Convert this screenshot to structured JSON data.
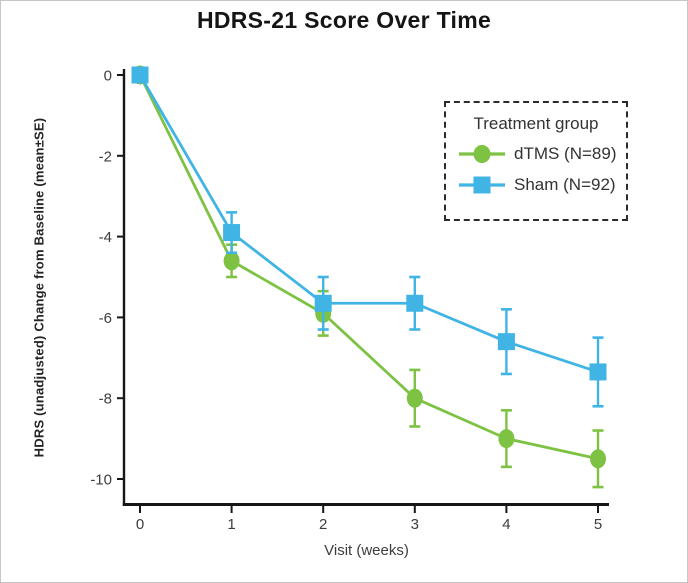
{
  "chart_data": {
    "type": "line",
    "title": "HDRS-21 Score Over Time",
    "xlabel": "Visit (weeks)",
    "ylabel": "HDRS (unadjusted) Change from Baseline (mean±SE)",
    "x": [
      0,
      1,
      2,
      3,
      4,
      5
    ],
    "xticks": [
      0,
      1,
      2,
      3,
      4,
      5
    ],
    "yticks": [
      0,
      -2,
      -4,
      -6,
      -8,
      -10
    ],
    "xlim": [
      -0.18,
      5.12
    ],
    "ylim": [
      -10.7,
      0.2
    ],
    "grid": false,
    "axis_color": "#161616",
    "error_bars": "mean±SE",
    "legend": {
      "title": "Treatment group",
      "position": "upper right",
      "border": "dashed"
    },
    "series": [
      {
        "id": "dtms",
        "name": "dTMS (N=89)",
        "marker": "circle",
        "color": "#7dc243",
        "values": [
          0,
          -4.6,
          -5.9,
          -8.0,
          -9.0,
          -9.5
        ],
        "se": [
          0,
          0.4,
          0.55,
          0.7,
          0.7,
          0.7
        ]
      },
      {
        "id": "sham",
        "name": "Sham (N=92)",
        "marker": "square",
        "color": "#3fb4e5",
        "values": [
          0,
          -3.9,
          -5.65,
          -5.65,
          -6.6,
          -7.35
        ],
        "se": [
          0,
          0.5,
          0.65,
          0.65,
          0.8,
          0.85
        ]
      }
    ]
  }
}
